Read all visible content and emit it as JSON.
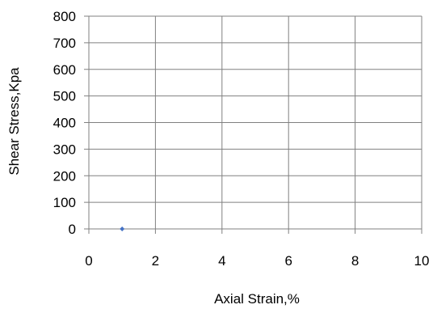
{
  "chart_data": {
    "type": "scatter",
    "title": "",
    "xlabel": "Axial Strain,%",
    "ylabel": "Shear Stress,Kpa",
    "xlim": [
      0,
      10
    ],
    "ylim": [
      0,
      800
    ],
    "xticks": [
      "0",
      "2",
      "4",
      "6",
      "8",
      "10"
    ],
    "yticks": [
      "0",
      "100",
      "200",
      "300",
      "400",
      "500",
      "600",
      "700",
      "800"
    ],
    "grid": true,
    "legend": "none",
    "series": [
      {
        "points": [
          {
            "x": 1,
            "y": 0
          }
        ],
        "color": "#4472C4",
        "marker": "diamond"
      }
    ],
    "colors": {
      "grid": "#808080",
      "axis": "#808080"
    }
  }
}
